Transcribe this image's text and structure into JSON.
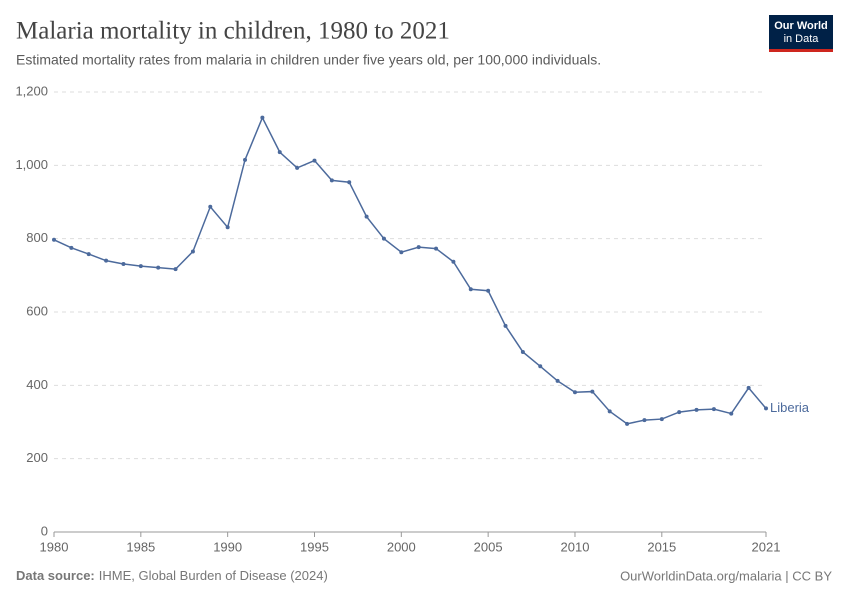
{
  "chart_data": {
    "type": "line",
    "title": "Malaria mortality in children, 1980 to 2021",
    "subtitle": "Estimated mortality rates from malaria in children under five years old, per 100,000 individuals.",
    "logo": [
      "Our World",
      "in Data"
    ],
    "source_label": "Data source:",
    "source": "IHME, Global Burden of Disease (2024)",
    "credit": "OurWorldinData.org/malaria | CC BY",
    "x": [
      1980,
      1981,
      1982,
      1983,
      1984,
      1985,
      1986,
      1987,
      1988,
      1989,
      1990,
      1991,
      1992,
      1993,
      1994,
      1995,
      1996,
      1997,
      1998,
      1999,
      2000,
      2001,
      2002,
      2003,
      2004,
      2005,
      2006,
      2007,
      2008,
      2009,
      2010,
      2011,
      2012,
      2013,
      2014,
      2015,
      2016,
      2017,
      2018,
      2019,
      2020,
      2021
    ],
    "series": [
      {
        "name": "Liberia",
        "color": "#4c6a9c",
        "values": [
          797,
          775,
          758,
          740,
          731,
          725,
          721,
          717,
          765,
          887,
          831,
          1015,
          1130,
          1036,
          993,
          1013,
          959,
          954,
          860,
          800,
          763,
          777,
          773,
          737,
          662,
          658,
          562,
          491,
          452,
          412,
          381,
          383,
          329,
          295,
          305,
          308,
          327,
          333,
          335,
          323,
          393,
          337
        ]
      }
    ],
    "xlim": [
      1980,
      2021
    ],
    "xticks": [
      1980,
      1985,
      1990,
      1995,
      2000,
      2005,
      2010,
      2015,
      2021
    ],
    "ylim": [
      0,
      1200
    ],
    "yticks": [
      0,
      200,
      400,
      600,
      800,
      {
        "value": 1000,
        "label": "1,000"
      },
      {
        "value": 1200,
        "label": "1,200"
      }
    ],
    "grid": true
  }
}
